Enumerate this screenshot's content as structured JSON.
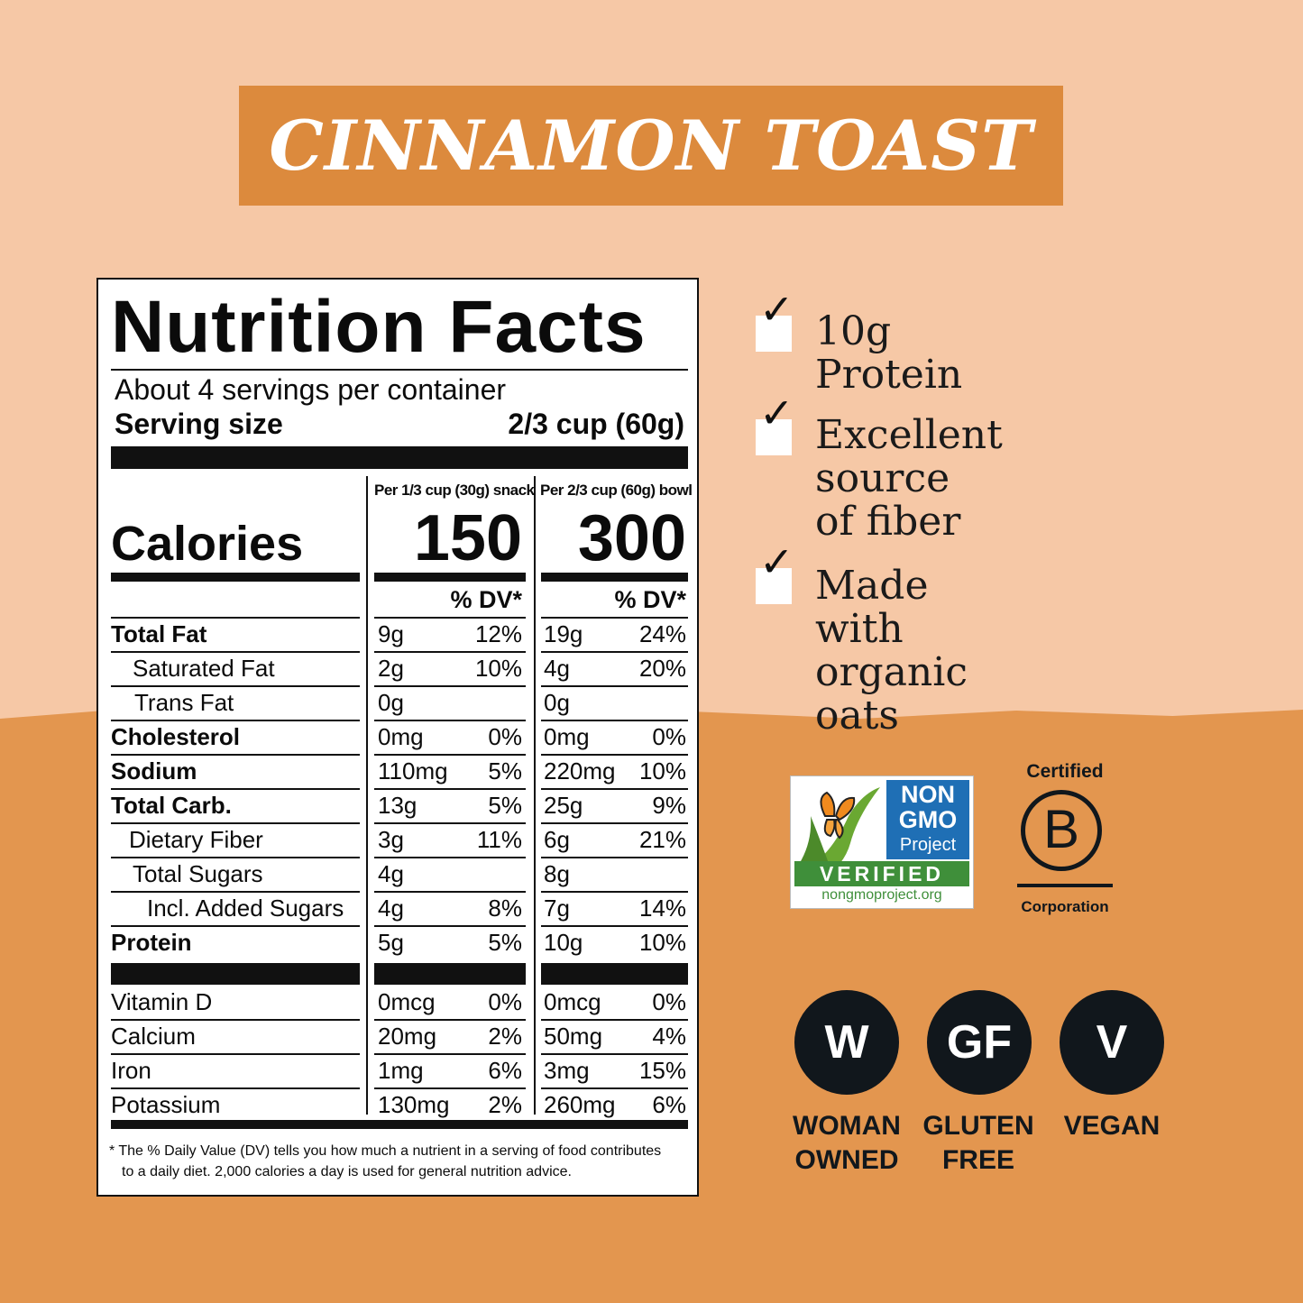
{
  "banner": {
    "title": "CINNAMON TOAST"
  },
  "nutrition": {
    "title": "Nutrition Facts",
    "servings": "About 4 servings per container",
    "serving_label": "Serving size",
    "serving_value": "2/3 cup (60g)",
    "col1_header": "Per 1/3 cup (30g) snack",
    "col2_header": "Per 2/3 cup (60g) bowl",
    "calories_label": "Calories",
    "calories_1": "150",
    "calories_2": "300",
    "dv_header": "% DV*",
    "rows": [
      {
        "name": "Total Fat",
        "amt1": "9g",
        "dv1": "12%",
        "amt2": "19g",
        "dv2": "24%"
      },
      {
        "name": "Saturated Fat",
        "amt1": "2g",
        "dv1": "10%",
        "amt2": "4g",
        "dv2": "20%"
      },
      {
        "name": "Trans Fat",
        "amt1": "0g",
        "dv1": "",
        "amt2": "0g",
        "dv2": ""
      },
      {
        "name": "Cholesterol",
        "amt1": "0mg",
        "dv1": "0%",
        "amt2": "0mg",
        "dv2": "0%"
      },
      {
        "name": "Sodium",
        "amt1": "110mg",
        "dv1": "5%",
        "amt2": "220mg",
        "dv2": "10%"
      },
      {
        "name": "Total Carb.",
        "amt1": "13g",
        "dv1": "5%",
        "amt2": "25g",
        "dv2": "9%"
      },
      {
        "name": "Dietary Fiber",
        "amt1": "3g",
        "dv1": "11%",
        "amt2": "6g",
        "dv2": "21%"
      },
      {
        "name": "Total Sugars",
        "amt1": "4g",
        "dv1": "",
        "amt2": "8g",
        "dv2": ""
      },
      {
        "name": "Incl. Added Sugars",
        "amt1": "4g",
        "dv1": "8%",
        "amt2": "7g",
        "dv2": "14%"
      },
      {
        "name": "Protein",
        "amt1": "5g",
        "dv1": "5%",
        "amt2": "10g",
        "dv2": "10%"
      }
    ],
    "vitamins": [
      {
        "name": "Vitamin D",
        "amt1": "0mcg",
        "dv1": "0%",
        "amt2": "0mcg",
        "dv2": "0%"
      },
      {
        "name": "Calcium",
        "amt1": "20mg",
        "dv1": "2%",
        "amt2": "50mg",
        "dv2": "4%"
      },
      {
        "name": "Iron",
        "amt1": "1mg",
        "dv1": "6%",
        "amt2": "3mg",
        "dv2": "15%"
      },
      {
        "name": "Potassium",
        "amt1": "130mg",
        "dv1": "2%",
        "amt2": "260mg",
        "dv2": "6%"
      }
    ],
    "footnote_1": "* The % Daily Value (DV) tells you how much a nutrient in a serving of food contributes",
    "footnote_2": "to a daily diet. 2,000 calories a day is used for general nutrition advice."
  },
  "claims": [
    {
      "line1": "10g Protein",
      "line2": ""
    },
    {
      "line1": "Excellent source",
      "line2": "of fiber"
    },
    {
      "line1": "Made with",
      "line2": "organic oats"
    }
  ],
  "certs": {
    "ngmo_line1": "NON",
    "ngmo_line2": "GMO",
    "ngmo_line3": "Project",
    "ngmo_verified": "VERIFIED",
    "ngmo_url": "nongmoproject.org",
    "bcorp_top": "Certified",
    "bcorp_letter": "B",
    "bcorp_bottom": "Corporation"
  },
  "badges": [
    {
      "symbol": "W",
      "line1": "WOMAN",
      "line2": "OWNED"
    },
    {
      "symbol": "GF",
      "line1": "GLUTEN",
      "line2": "FREE"
    },
    {
      "symbol": "V",
      "line1": "VEGAN",
      "line2": ""
    }
  ],
  "colors": {
    "banner": "#dc8a3d",
    "background_top": "#f6c8a6",
    "background_bottom": "#e3964f",
    "badge": "#11171c"
  }
}
